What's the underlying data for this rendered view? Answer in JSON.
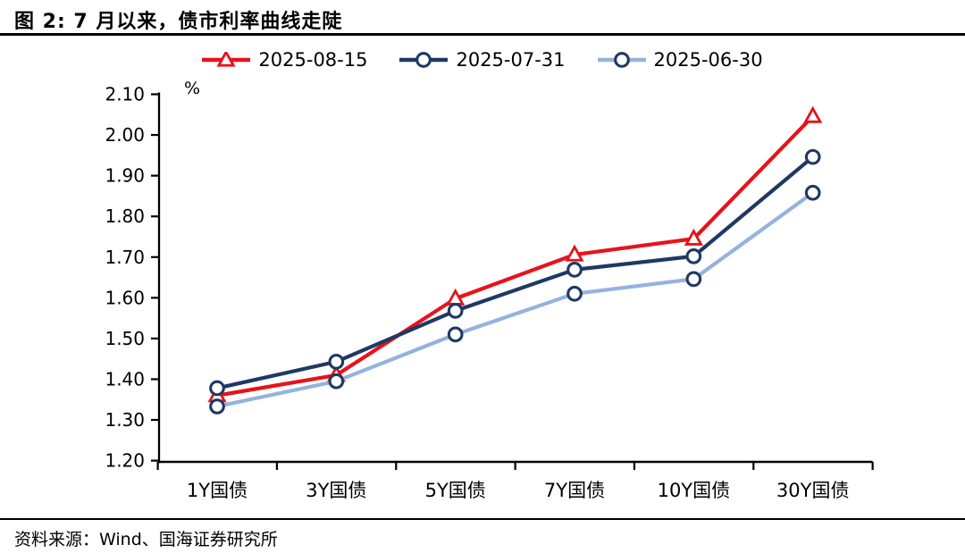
{
  "title": "图 2: 7 月以来，债市利率曲线走陡",
  "footer": {
    "source": "资料来源：Wind、国海证券研究所"
  },
  "colors": {
    "series_red": "#e8121a",
    "series_navy": "#1f3864",
    "series_lightblue": "#94b3dc",
    "axis": "#000000",
    "marker_fill": "#ffffff"
  },
  "chart_data": {
    "type": "line",
    "title": "",
    "ylabel": "%",
    "xlabel": "",
    "grid": false,
    "legend_position": "top",
    "categories": [
      "1Y国债",
      "3Y国债",
      "5Y国债",
      "7Y国债",
      "10Y国债",
      "30Y国债"
    ],
    "ylim": [
      1.2,
      2.1
    ],
    "ytick_step": 0.1,
    "yticks": [
      "2.10",
      "2.00",
      "1.90",
      "1.80",
      "1.70",
      "1.60",
      "1.50",
      "1.40",
      "1.30",
      "1.20"
    ],
    "series": [
      {
        "name": "2025-08-15",
        "color": "#e8121a",
        "marker": "triangle",
        "marker_stroke": "#e8121a",
        "values": [
          1.36,
          1.41,
          1.598,
          1.706,
          1.745,
          2.046
        ]
      },
      {
        "name": "2025-07-31",
        "color": "#1f3864",
        "marker": "circle",
        "marker_stroke": "#1f3864",
        "values": [
          1.378,
          1.443,
          1.568,
          1.669,
          1.702,
          1.946
        ]
      },
      {
        "name": "2025-06-30",
        "color": "#94b3dc",
        "marker": "circle",
        "marker_stroke": "#1f3864",
        "values": [
          1.333,
          1.395,
          1.51,
          1.61,
          1.646,
          1.858
        ]
      }
    ]
  }
}
